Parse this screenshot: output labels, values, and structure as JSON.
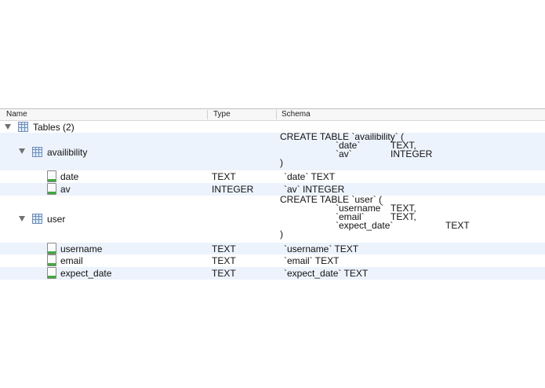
{
  "columns": {
    "name": "Name",
    "type": "Type",
    "schema": "Schema"
  },
  "root": {
    "label": "Tables (2)"
  },
  "tables": [
    {
      "name": "availibility",
      "schema_lines": [
        {
          "parts": [
            "CREATE TABLE `availibility` ("
          ]
        },
        {
          "parts": [
            "`date`",
            "TEXT,"
          ]
        },
        {
          "parts": [
            "`av`",
            "INTEGER"
          ]
        },
        {
          "parts": [
            ")"
          ]
        }
      ],
      "columns": [
        {
          "name": "date",
          "type": "TEXT",
          "schema": "`date` TEXT"
        },
        {
          "name": "av",
          "type": "INTEGER",
          "schema": "`av` INTEGER"
        }
      ]
    },
    {
      "name": "user",
      "schema_lines": [
        {
          "parts": [
            "CREATE TABLE `user` ("
          ]
        },
        {
          "parts": [
            "`username`",
            "TEXT,"
          ]
        },
        {
          "parts": [
            "`email`",
            "TEXT,"
          ]
        },
        {
          "parts": [
            "`expect_date`",
            "TEXT"
          ]
        },
        {
          "parts": [
            ")"
          ]
        }
      ],
      "columns": [
        {
          "name": "username",
          "type": "TEXT",
          "schema": "`username` TEXT"
        },
        {
          "name": "email",
          "type": "TEXT",
          "schema": "`email` TEXT"
        },
        {
          "name": "expect_date",
          "type": "TEXT",
          "schema": "`expect_date` TEXT"
        }
      ]
    }
  ]
}
